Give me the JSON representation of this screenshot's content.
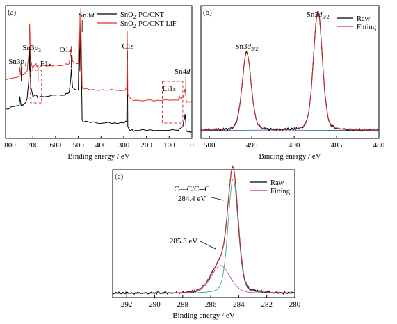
{
  "chart_data": [
    {
      "panel_label": "(a)",
      "type": "line",
      "xlabel": "Binding energy / eV",
      "ylabel": "",
      "xlim": [
        820,
        0
      ],
      "x_ticks": [
        "800",
        "700",
        "600",
        "500",
        "400",
        "300",
        "200",
        "100",
        "0"
      ],
      "legend_position": "top-right",
      "series": [
        {
          "name": "SnO2-PC/CNT",
          "name_parts": [
            "SnO",
            "2",
            "-PC/CNT"
          ],
          "color": "#000000",
          "x": [
            820,
            780,
            760,
            757,
            752,
            740,
            725,
            717,
            714,
            710,
            700,
            686,
            680,
            665,
            640,
            600,
            560,
            540,
            533,
            531,
            525,
            500,
            496,
            493,
            489,
            486,
            483,
            480,
            460,
            420,
            380,
            340,
            300,
            287,
            284.5,
            282,
            270,
            250,
            200,
            150,
            100,
            60,
            40,
            30,
            27,
            25,
            20,
            10,
            0
          ],
          "y": [
            0.2,
            0.22,
            0.23,
            0.3,
            0.23,
            0.24,
            0.28,
            0.45,
            0.7,
            0.38,
            0.3,
            0.31,
            0.29,
            0.3,
            0.3,
            0.31,
            0.31,
            0.33,
            0.44,
            0.52,
            0.37,
            0.35,
            0.82,
            0.5,
            0.9,
            0.47,
            0.12,
            0.1,
            0.1,
            0.09,
            0.09,
            0.09,
            0.09,
            0.1,
            0.62,
            0.06,
            0.03,
            0.03,
            0.03,
            0.03,
            0.03,
            0.03,
            0.06,
            0.16,
            0.1,
            0.02,
            0.02,
            0.02,
            0.02
          ]
        },
        {
          "name": "SnO2-PC/CNT-LiF",
          "name_parts": [
            "SnO",
            "2",
            "-PC/CNT-LiF"
          ],
          "color": "#e0312b",
          "x": [
            820,
            780,
            760,
            757,
            752,
            740,
            725,
            717,
            714,
            710,
            700,
            686,
            680,
            665,
            640,
            600,
            560,
            540,
            533,
            531,
            525,
            500,
            496,
            493,
            489,
            486,
            483,
            480,
            460,
            420,
            380,
            340,
            300,
            287,
            284.5,
            282,
            270,
            250,
            200,
            150,
            100,
            60,
            56,
            50,
            40,
            30,
            27,
            25,
            20,
            10,
            0
          ],
          "y": [
            0.43,
            0.45,
            0.46,
            0.53,
            0.46,
            0.47,
            0.5,
            0.65,
            0.88,
            0.6,
            0.52,
            0.56,
            0.53,
            0.54,
            0.54,
            0.55,
            0.55,
            0.56,
            0.64,
            0.7,
            0.58,
            0.56,
            0.95,
            0.68,
            1.0,
            0.66,
            0.38,
            0.36,
            0.36,
            0.35,
            0.35,
            0.35,
            0.35,
            0.36,
            0.82,
            0.32,
            0.28,
            0.27,
            0.27,
            0.27,
            0.27,
            0.27,
            0.31,
            0.28,
            0.29,
            0.36,
            0.32,
            0.26,
            0.26,
            0.26,
            0.26
          ]
        }
      ],
      "annotations": [
        {
          "parts": [
            {
              "t": "Sn3"
            },
            {
              "t": "p",
              "i": true
            },
            {
              "t": "1",
              "sub": true
            }
          ],
          "x": 757
        },
        {
          "parts": [
            {
              "t": "Sn3"
            },
            {
              "t": "p",
              "i": true
            },
            {
              "t": "3",
              "sub": true
            }
          ],
          "x": 714
        },
        {
          "parts": [
            {
              "t": "F1"
            },
            {
              "t": "s",
              "i": true
            }
          ],
          "x": 686
        },
        {
          "parts": [
            {
              "t": "O1"
            },
            {
              "t": "s",
              "i": true
            }
          ],
          "x": 531
        },
        {
          "parts": [
            {
              "t": "Sn3"
            },
            {
              "t": "d",
              "i": true
            }
          ],
          "x": 489
        },
        {
          "parts": [
            {
              "t": "C1"
            },
            {
              "t": "s",
              "i": true
            }
          ],
          "x": 284.5
        },
        {
          "parts": [
            {
              "t": "Li1"
            },
            {
              "t": "s",
              "i": true
            }
          ],
          "x": 56
        },
        {
          "parts": [
            {
              "t": "Sn4"
            },
            {
              "t": "d",
              "i": true
            }
          ],
          "x": 27
        }
      ]
    },
    {
      "panel_label": "(b)",
      "type": "line",
      "xlabel": "Binding energy / eV",
      "ylabel": "",
      "xlim": [
        501,
        480
      ],
      "x_ticks": [
        "500",
        "495",
        "490",
        "485",
        "480"
      ],
      "legend_position": "top-right",
      "series": [
        {
          "name": "Raw",
          "color": "#000000"
        },
        {
          "name": "Fitting",
          "color": "#e0312b"
        }
      ],
      "peaks": [
        {
          "center": 495.6,
          "height": 0.62,
          "fwhm": 1.25
        },
        {
          "center": 487.2,
          "height": 0.95,
          "fwhm": 1.25
        }
      ],
      "baseline": 0.03,
      "annotations": [
        {
          "parts": [
            {
              "t": "Sn3"
            },
            {
              "t": "d",
              "i": true
            },
            {
              "t": "3/2",
              "sub": true
            }
          ],
          "x": 495.6
        },
        {
          "parts": [
            {
              "t": "Sn3"
            },
            {
              "t": "d",
              "i": true
            },
            {
              "t": "5/2",
              "sub": true
            }
          ],
          "x": 487.2
        }
      ]
    },
    {
      "panel_label": "(c)",
      "type": "line",
      "xlabel": "Binding energy / eV",
      "ylabel": "",
      "xlim": [
        293,
        280
      ],
      "x_ticks": [
        "292",
        "290",
        "288",
        "286",
        "284",
        "282",
        "280"
      ],
      "legend_position": "top-right",
      "series": [
        {
          "name": "Raw",
          "color": "#000000"
        },
        {
          "name": "Fitting",
          "color": "#e0312b"
        }
      ],
      "peaks": [
        {
          "center": 284.4,
          "height": 0.95,
          "fwhm": 0.85
        },
        {
          "center": 285.3,
          "height": 0.23,
          "fwhm": 1.6
        }
      ],
      "baseline": 0.0,
      "annotations": [
        {
          "text": "C—C/C═C",
          "x": 284.4
        },
        {
          "text": "284.4 eV",
          "x": 284.4
        },
        {
          "text": "285.3 eV",
          "x": 285.3
        }
      ]
    }
  ]
}
